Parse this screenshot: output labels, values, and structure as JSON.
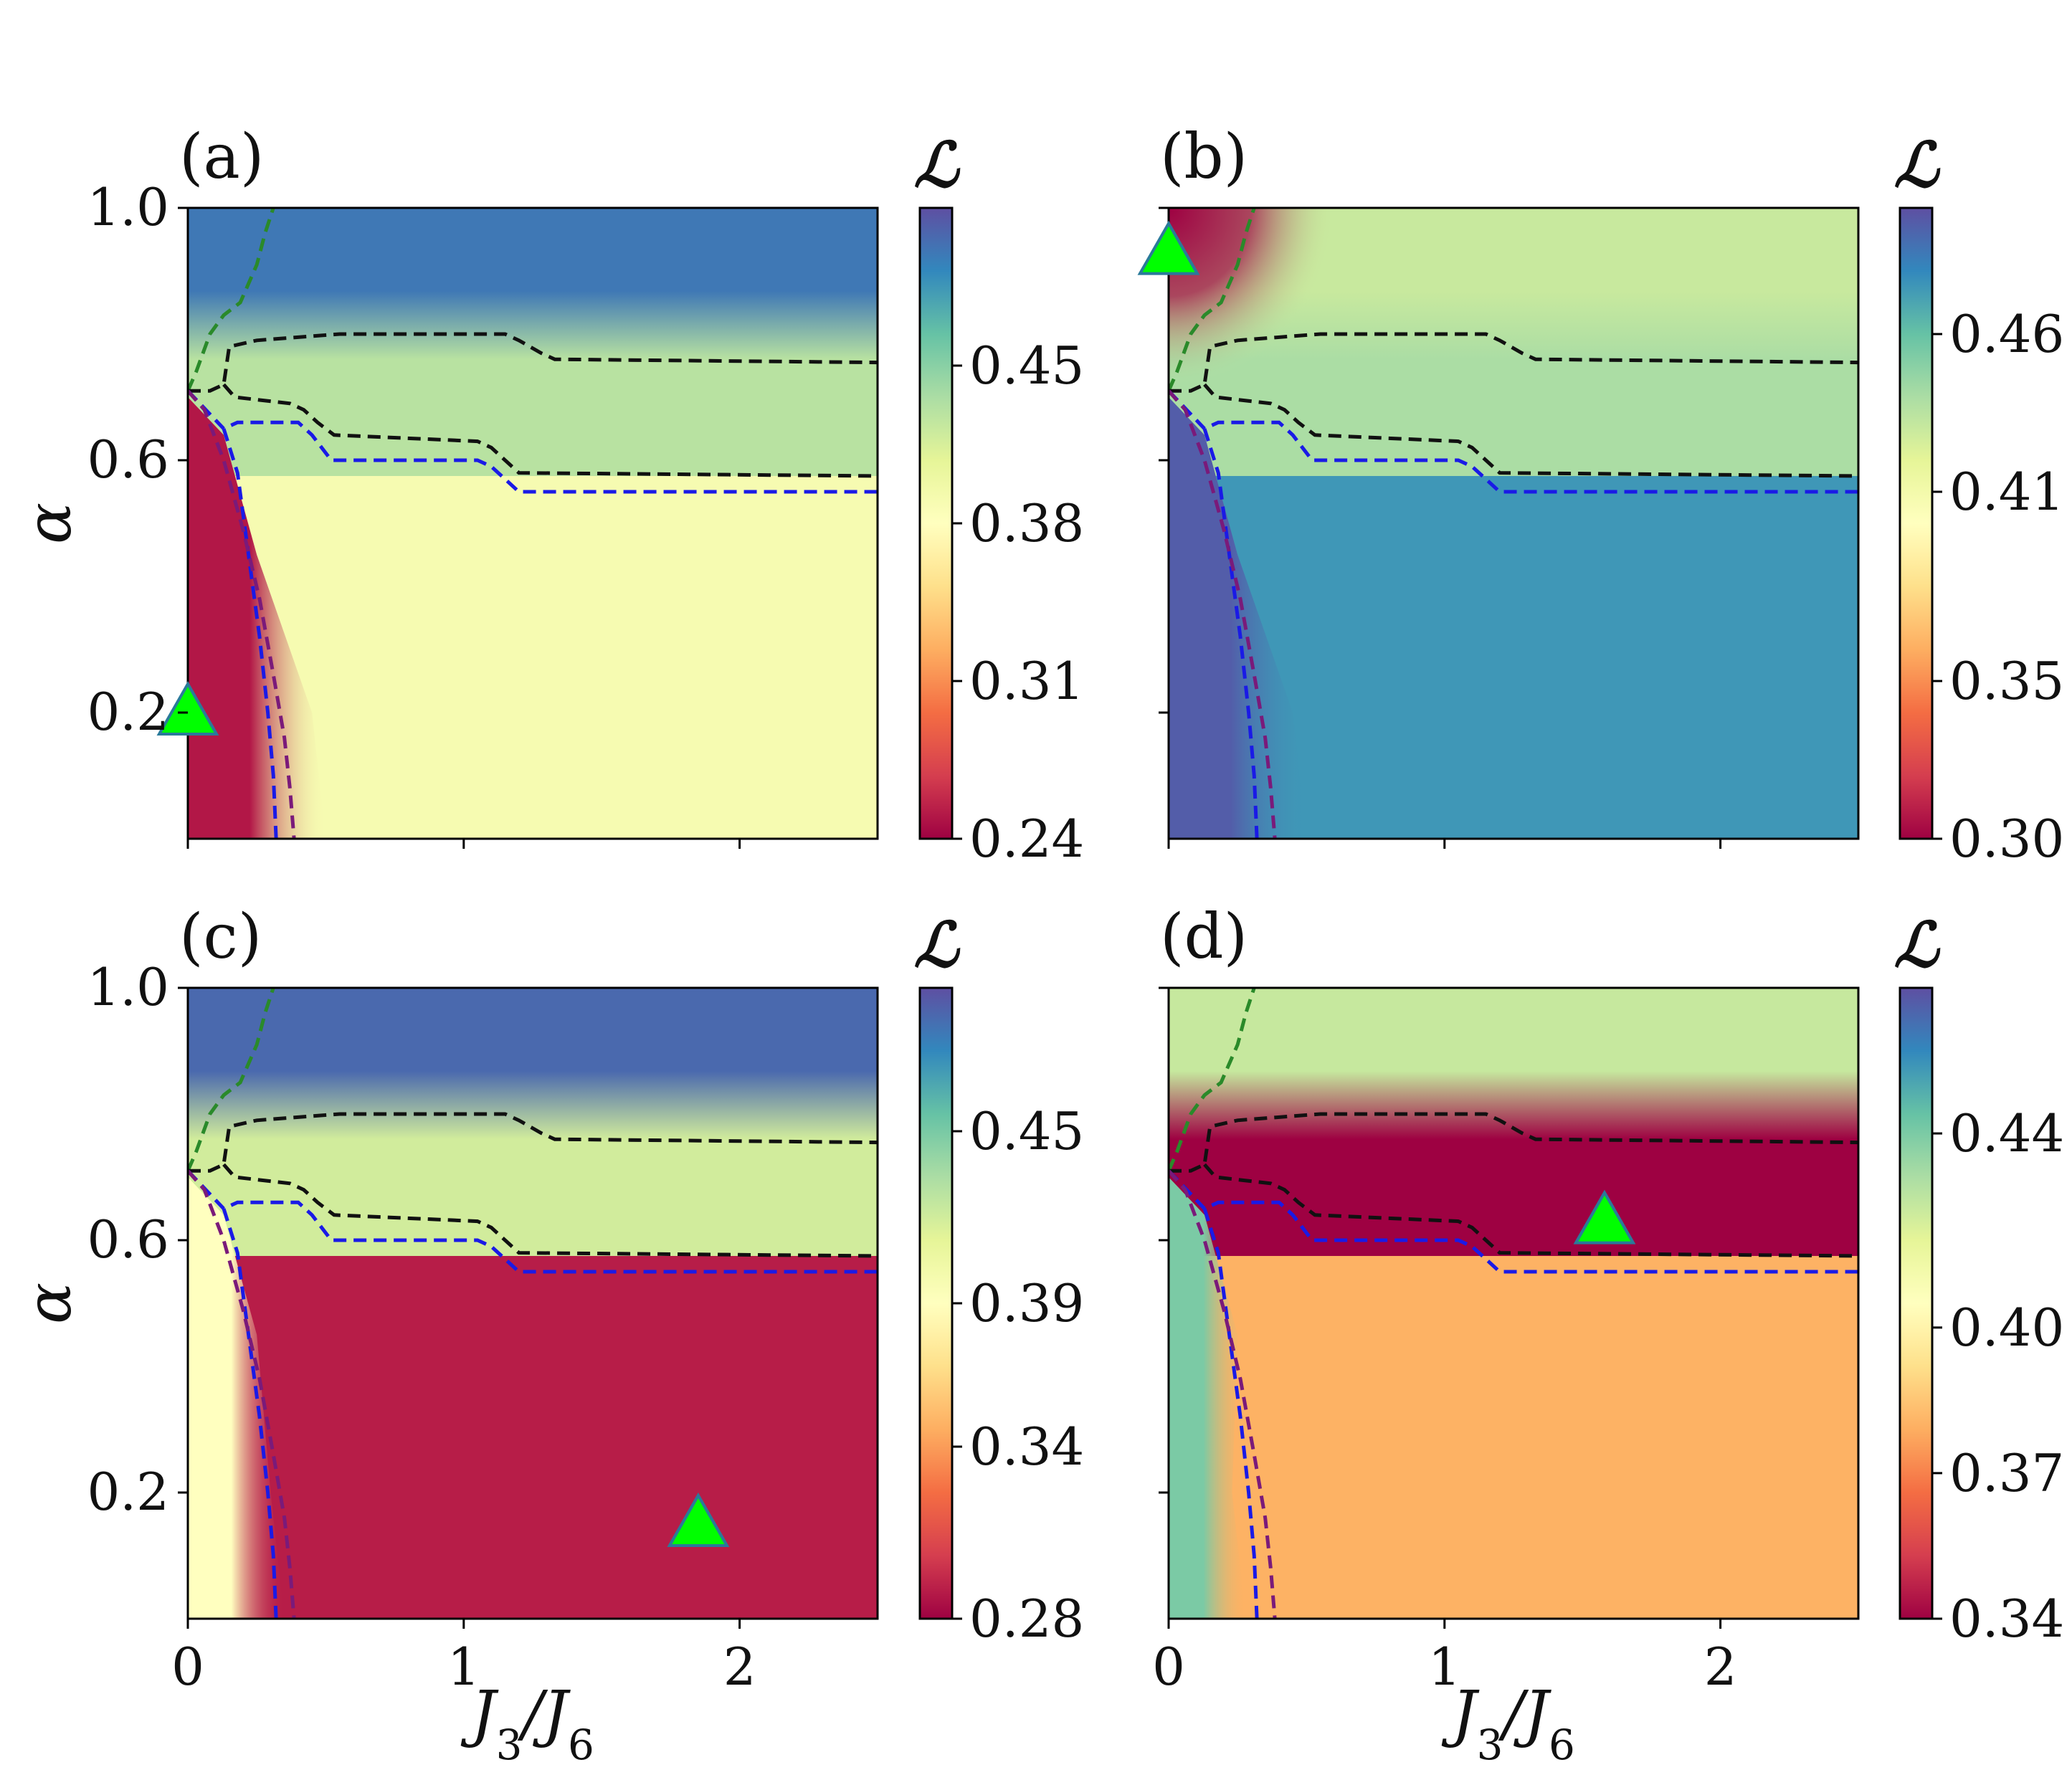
{
  "colors": {
    "green_boundary": "#2a8a2a",
    "black_boundary": "#111111",
    "blue_boundary": "#1a1ae6",
    "purple_boundary": "#7a1a7a",
    "marker_fill": "#00ff00",
    "marker_edge": "#2a7a9a",
    "colormap": "Spectral"
  },
  "chart_data": [
    {
      "type": "heatmap",
      "panel_label": "(a)",
      "xlim": [
        0,
        2.5
      ],
      "ylim": [
        0,
        1.0
      ],
      "x_ticks": [
        0,
        1,
        2
      ],
      "x_tick_labels": [
        "",
        "",
        ""
      ],
      "y_ticks": [
        0.2,
        0.6,
        1.0
      ],
      "y_tick_labels": [
        "0.2",
        "0.6",
        "1.0"
      ],
      "xlabel": "",
      "ylabel": "α",
      "colorbar": {
        "title": "ℒ",
        "range": [
          0.24,
          0.52
        ],
        "ticks": [
          0.24,
          0.31,
          0.38,
          0.45
        ],
        "tick_labels": [
          "0.24",
          "0.31",
          "0.38",
          "0.45"
        ]
      },
      "regions": {
        "top": 0.5,
        "middle": 0.43,
        "lower": 0.39,
        "left": 0.25,
        "left_width": 0.3,
        "top_border_value": 0.5
      },
      "marker": {
        "x": 0.0,
        "y": 0.2
      }
    },
    {
      "type": "heatmap",
      "panel_label": "(b)",
      "xlim": [
        0,
        2.5
      ],
      "ylim": [
        0,
        1.0
      ],
      "x_ticks": [
        0,
        1,
        2
      ],
      "x_tick_labels": [
        "",
        "",
        ""
      ],
      "y_ticks": [
        0.2,
        0.6,
        1.0
      ],
      "y_tick_labels": [
        "",
        "",
        ""
      ],
      "xlabel": "",
      "ylabel": "",
      "colorbar": {
        "title": "ℒ",
        "range": [
          0.3,
          0.5
        ],
        "ticks": [
          0.3,
          0.35,
          0.41,
          0.46
        ],
        "tick_labels": [
          "0.30",
          "0.35",
          "0.41",
          "0.46"
        ]
      },
      "regions": {
        "top": 0.43,
        "middle": 0.44,
        "lower": 0.475,
        "left": 0.495,
        "left_width": 0.3,
        "top_corner": 0.3
      },
      "marker": {
        "x": 0.0,
        "y": 0.93
      }
    },
    {
      "type": "heatmap",
      "panel_label": "(c)",
      "xlim": [
        0,
        2.5
      ],
      "ylim": [
        0,
        1.0
      ],
      "x_ticks": [
        0,
        1,
        2
      ],
      "x_tick_labels": [
        "0",
        "1",
        "2"
      ],
      "y_ticks": [
        0.2,
        0.6,
        1.0
      ],
      "y_tick_labels": [
        "0.2",
        "0.6",
        "1.0"
      ],
      "xlabel": "J3/J6",
      "ylabel": "α",
      "colorbar": {
        "title": "ℒ",
        "range": [
          0.28,
          0.5
        ],
        "ticks": [
          0.28,
          0.34,
          0.39,
          0.45
        ],
        "tick_labels": [
          "0.28",
          "0.34",
          "0.39",
          "0.45"
        ]
      },
      "regions": {
        "top": 0.49,
        "middle": 0.42,
        "lower": 0.29,
        "left": 0.39,
        "left_width": 0.15
      },
      "marker": {
        "x": 1.85,
        "y": 0.15
      }
    },
    {
      "type": "heatmap",
      "panel_label": "(d)",
      "xlim": [
        0,
        2.5
      ],
      "ylim": [
        0,
        1.0
      ],
      "x_ticks": [
        0,
        1,
        2
      ],
      "x_tick_labels": [
        "0",
        "1",
        "2"
      ],
      "y_ticks": [
        0.2,
        0.6,
        1.0
      ],
      "y_tick_labels": [
        "",
        "",
        ""
      ],
      "xlabel": "J3/J6",
      "ylabel": "",
      "colorbar": {
        "title": "ℒ",
        "range": [
          0.34,
          0.47
        ],
        "ticks": [
          0.34,
          0.37,
          0.4,
          0.44
        ],
        "tick_labels": [
          "0.34",
          "0.37",
          "0.40",
          "0.44"
        ]
      },
      "regions": {
        "top": 0.425,
        "middle": 0.34,
        "lower": 0.38,
        "left": 0.44,
        "left_width": 0.08
      },
      "marker": {
        "x": 1.58,
        "y": 0.63
      }
    }
  ],
  "boundaries": {
    "green": {
      "x": [
        0.0,
        0.03,
        0.08,
        0.13,
        0.19,
        0.25,
        0.28,
        0.31
      ],
      "y": [
        0.71,
        0.74,
        0.8,
        0.83,
        0.85,
        0.91,
        0.96,
        1.0
      ]
    },
    "black_upper": {
      "x": [
        0.0,
        0.08,
        0.13,
        0.15,
        0.25,
        0.55,
        1.15,
        1.2,
        1.28,
        1.33,
        2.5
      ],
      "y": [
        0.71,
        0.71,
        0.72,
        0.78,
        0.79,
        0.8,
        0.8,
        0.79,
        0.77,
        0.76,
        0.755
      ]
    },
    "black_lower": {
      "x": [
        0.13,
        0.17,
        0.37,
        0.42,
        0.47,
        0.53,
        1.05,
        1.1,
        1.15,
        1.2,
        2.5
      ],
      "y": [
        0.72,
        0.7,
        0.69,
        0.68,
        0.66,
        0.64,
        0.63,
        0.62,
        0.6,
        0.58,
        0.575
      ]
    },
    "blue": {
      "x": [
        0.0,
        0.13,
        0.18,
        0.4,
        0.45,
        0.52,
        1.05,
        1.1,
        1.15,
        1.2,
        2.5,
        0.13,
        0.18,
        0.22,
        0.26,
        0.29,
        0.31,
        0.32
      ],
      "y": [
        0.71,
        0.65,
        0.66,
        0.66,
        0.64,
        0.6,
        0.6,
        0.59,
        0.57,
        0.55,
        0.55,
        0.65,
        0.58,
        0.45,
        0.32,
        0.2,
        0.1,
        0.0
      ]
    },
    "purple": {
      "x": [
        0.0,
        0.06,
        0.13,
        0.2,
        0.26,
        0.31,
        0.35,
        0.37,
        0.385
      ],
      "y": [
        0.71,
        0.68,
        0.6,
        0.49,
        0.38,
        0.26,
        0.16,
        0.08,
        0.0
      ]
    }
  }
}
